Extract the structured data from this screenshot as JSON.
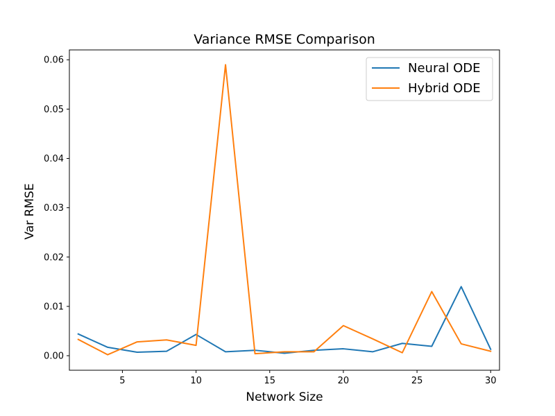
{
  "chart_data": {
    "type": "line",
    "title": "Variance RMSE Comparison",
    "xlabel": "Network Size",
    "ylabel": "Var RMSE",
    "xlim": [
      1.4,
      30.6
    ],
    "ylim": [
      -0.00295,
      0.062
    ],
    "xticks": [
      5,
      10,
      15,
      20,
      25,
      30
    ],
    "xtick_labels": [
      "5",
      "10",
      "15",
      "20",
      "25",
      "30"
    ],
    "yticks": [
      0.0,
      0.01,
      0.02,
      0.03,
      0.04,
      0.05,
      0.06
    ],
    "ytick_labels": [
      "0.00",
      "0.01",
      "0.02",
      "0.03",
      "0.04",
      "0.05",
      "0.06"
    ],
    "grid": false,
    "legend_position": "top-right",
    "x": [
      2,
      4,
      6,
      8,
      10,
      12,
      14,
      16,
      18,
      20,
      22,
      24,
      26,
      28,
      30
    ],
    "series": [
      {
        "name": "Neural ODE",
        "color": "#1f77b4",
        "values": [
          0.0044,
          0.0017,
          0.0007,
          0.0009,
          0.0043,
          0.0008,
          0.0011,
          0.0005,
          0.0011,
          0.0014,
          0.0008,
          0.0025,
          0.0019,
          0.014,
          0.0013
        ]
      },
      {
        "name": "Hybrid ODE",
        "color": "#ff7f0e",
        "values": [
          0.0033,
          0.0002,
          0.0028,
          0.0032,
          0.0021,
          0.059,
          0.0004,
          0.0008,
          0.0008,
          0.0061,
          0.0034,
          0.0006,
          0.013,
          0.0024,
          0.0009
        ]
      }
    ]
  }
}
